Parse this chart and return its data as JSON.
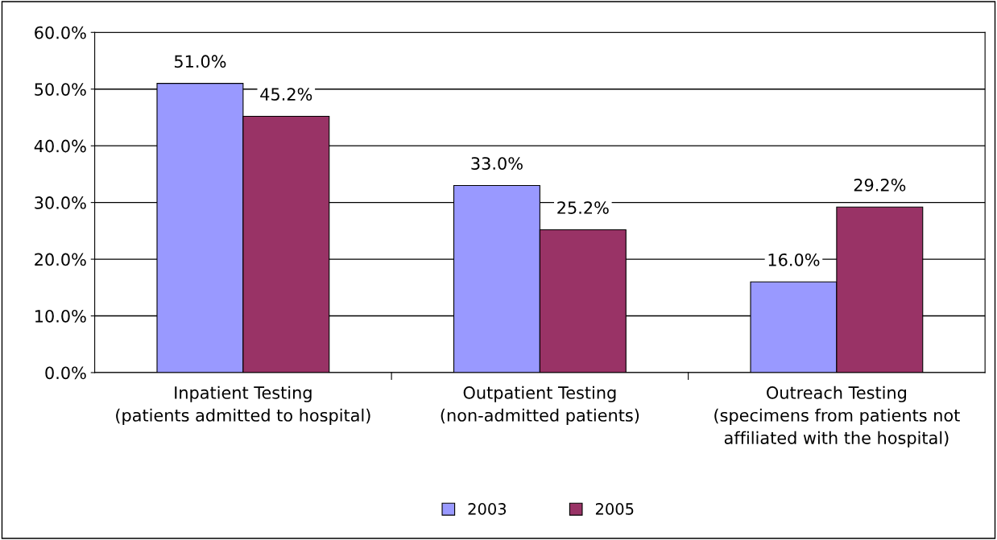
{
  "chart_data": {
    "type": "bar",
    "categories": [
      "Inpatient Testing\n(patients admitted to hospital)",
      "Outpatient Testing\n(non-admitted patients)",
      "Outreach Testing\n(specimens from patients not\naffiliated with the hospital)"
    ],
    "series": [
      {
        "name": "2003",
        "color": "#9999ff",
        "values": [
          51.0,
          33.0,
          16.0
        ],
        "value_labels": [
          "51.0%",
          "33.0%",
          "16.0%"
        ]
      },
      {
        "name": "2005",
        "color": "#993366",
        "values": [
          45.2,
          25.2,
          29.2
        ],
        "value_labels": [
          "45.2%",
          "25.2%",
          "29.2%"
        ]
      }
    ],
    "ylim": [
      0,
      60
    ],
    "yticks": [
      {
        "value": 0,
        "label": "0.0%"
      },
      {
        "value": 10,
        "label": "10.0%"
      },
      {
        "value": 20,
        "label": "20.0%"
      },
      {
        "value": 30,
        "label": "30.0%"
      },
      {
        "value": 40,
        "label": "40.0%"
      },
      {
        "value": 50,
        "label": "50.0%"
      },
      {
        "value": 60,
        "label": "60.0%"
      }
    ],
    "grid": "y",
    "legend": "bottom"
  }
}
